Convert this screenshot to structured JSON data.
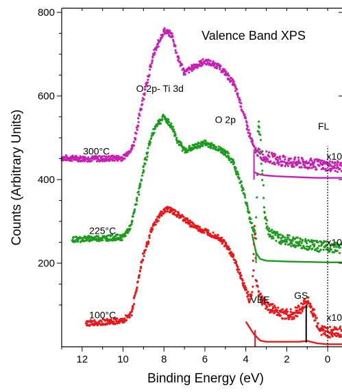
{
  "chart_data": {
    "type": "scatter",
    "title": "Valence Band XPS",
    "xlabel": "Binding Energy (eV)",
    "ylabel": "Counts (Arbitrary Units)",
    "xlim": [
      13.0,
      -0.7
    ],
    "ylim": [
      0,
      810
    ],
    "x_ticks": [
      12,
      10,
      8,
      6,
      4,
      2,
      0
    ],
    "x_tick_labels": [
      "12",
      "10",
      "8",
      "6",
      "4",
      "2",
      "0"
    ],
    "y_ticks": [
      200,
      400,
      600,
      800
    ],
    "y_tick_labels": [
      "200",
      "400",
      "600",
      "800"
    ],
    "grid": false,
    "series": [
      {
        "name": "300°C",
        "color": "#c81eb4",
        "points": [
          [
            13,
            452
          ],
          [
            12,
            450
          ],
          [
            11,
            450
          ],
          [
            10,
            452
          ],
          [
            9.5,
            480
          ],
          [
            9,
            600
          ],
          [
            8.5,
            700
          ],
          [
            8,
            757
          ],
          [
            7.6,
            745
          ],
          [
            7.3,
            690
          ],
          [
            7.0,
            655
          ],
          [
            6.6,
            668
          ],
          [
            6,
            683
          ],
          [
            5.4,
            673
          ],
          [
            5,
            655
          ],
          [
            4.6,
            630
          ],
          [
            4.3,
            590
          ],
          [
            4.0,
            540
          ],
          [
            3.8,
            505
          ],
          [
            3.6,
            475
          ],
          [
            3.4,
            462
          ],
          [
            3.0,
            455
          ],
          [
            2.5,
            448
          ],
          [
            2,
            443
          ],
          [
            1.5,
            440
          ],
          [
            1.0,
            438
          ],
          [
            0.5,
            436
          ],
          [
            0,
            433
          ],
          [
            -0.7,
            430
          ]
        ],
        "scaled_points": [
          [
            3.6,
            418
          ],
          [
            3.3,
            412
          ],
          [
            3.0,
            410
          ],
          [
            2.5,
            408
          ],
          [
            2,
            407
          ],
          [
            1.5,
            406
          ],
          [
            1,
            405
          ],
          [
            0.5,
            404
          ],
          [
            0,
            404
          ],
          [
            -0.7,
            404
          ]
        ]
      },
      {
        "name": "225°C",
        "color": "#1c9b1c",
        "points": [
          [
            12.5,
            256
          ],
          [
            12,
            258
          ],
          [
            11,
            260
          ],
          [
            10,
            262
          ],
          [
            9.6,
            290
          ],
          [
            9.2,
            380
          ],
          [
            8.7,
            490
          ],
          [
            8.4,
            530
          ],
          [
            8,
            550
          ],
          [
            7.6,
            525
          ],
          [
            7.3,
            490
          ],
          [
            7,
            470
          ],
          [
            6.5,
            478
          ],
          [
            6,
            488
          ],
          [
            5.5,
            478
          ],
          [
            5,
            465
          ],
          [
            4.6,
            440
          ],
          [
            4.3,
            400
          ],
          [
            4,
            350
          ],
          [
            3.7,
            290
          ],
          [
            3.5,
            265
          ],
          [
            3.4,
            540
          ],
          [
            3.3,
            500
          ],
          [
            3.2,
            420
          ],
          [
            3.1,
            320
          ],
          [
            2.9,
            275
          ],
          [
            2.5,
            262
          ],
          [
            2,
            255
          ],
          [
            1.5,
            250
          ],
          [
            1,
            245
          ],
          [
            0.5,
            240
          ],
          [
            0,
            240
          ],
          [
            -0.7,
            236
          ]
        ],
        "scaled_points": [
          [
            3.7,
            270
          ],
          [
            3.5,
            225
          ],
          [
            3.3,
            210
          ],
          [
            3,
            206
          ],
          [
            2,
            204
          ],
          [
            1,
            203
          ],
          [
            0,
            202
          ],
          [
            -0.7,
            202
          ]
        ]
      },
      {
        "name": "100°C",
        "color": "#e8171a",
        "points": [
          [
            11.8,
            56
          ],
          [
            11,
            59
          ],
          [
            10,
            62
          ],
          [
            9.6,
            80
          ],
          [
            9.3,
            150
          ],
          [
            9,
            220
          ],
          [
            8.6,
            280
          ],
          [
            8.2,
            315
          ],
          [
            7.8,
            330
          ],
          [
            7.3,
            315
          ],
          [
            6.8,
            298
          ],
          [
            6.3,
            282
          ],
          [
            5.8,
            273
          ],
          [
            5.3,
            262
          ],
          [
            5,
            245
          ],
          [
            4.6,
            215
          ],
          [
            4.3,
            175
          ],
          [
            4.0,
            135
          ],
          [
            3.8,
            110
          ],
          [
            3.7,
            130
          ],
          [
            3.6,
            230
          ],
          [
            3.55,
            300
          ],
          [
            3.5,
            160
          ],
          [
            3.3,
            118
          ],
          [
            3.0,
            100
          ],
          [
            2.6,
            88
          ],
          [
            2.2,
            80
          ],
          [
            2,
            76
          ],
          [
            1.6,
            80
          ],
          [
            1.2,
            98
          ],
          [
            1.0,
            110
          ],
          [
            0.8,
            92
          ],
          [
            0.5,
            55
          ],
          [
            0.3,
            40
          ],
          [
            0,
            35
          ],
          [
            -0.7,
            35
          ]
        ],
        "scaled_points": [
          [
            4.0,
            60
          ],
          [
            3.6,
            30
          ],
          [
            3.3,
            15
          ],
          [
            3,
            12
          ],
          [
            2,
            12
          ],
          [
            1.4,
            12
          ],
          [
            1,
            14
          ],
          [
            0.5,
            8
          ],
          [
            0,
            6
          ],
          [
            -0.7,
            6
          ]
        ]
      }
    ],
    "annotations": [
      {
        "text": "O 2p- Ti 3d",
        "x": 8.2,
        "y": 610
      },
      {
        "text": "O 2p",
        "x": 5.0,
        "y": 535
      },
      {
        "text": "FL",
        "x": 0.2,
        "y": 520
      },
      {
        "text": "VBE",
        "x": 3.3,
        "y": 105
      },
      {
        "text": "GS",
        "x": 1.3,
        "y": 115
      },
      {
        "text": "x10",
        "x": -0.7,
        "y": 448
      },
      {
        "text": "x10",
        "x": -0.7,
        "y": 242
      },
      {
        "text": "x10",
        "x": -0.7,
        "y": 62
      },
      {
        "text": "300°C",
        "x": 11.3,
        "y": 460
      },
      {
        "text": "225°C",
        "x": 11.0,
        "y": 270
      },
      {
        "text": "100°C",
        "x": 11.0,
        "y": 68
      }
    ],
    "markers": [
      {
        "name": "fermi-level-line",
        "x": 0,
        "y0": 0,
        "y1": 480,
        "style": "dotted",
        "color": "#000000"
      },
      {
        "name": "vbe-marker-line",
        "x": 3.55,
        "y0": 0,
        "y1": 40,
        "style": "solid",
        "color": "#e8171a"
      },
      {
        "name": "gs-marker-line",
        "x": 1.05,
        "y0": 10,
        "y1": 100,
        "style": "solid",
        "color": "#000000"
      },
      {
        "name": "onset-marker-225",
        "x": 3.5,
        "y0": 200,
        "y1": 230,
        "style": "solid",
        "color": "#1c9b1c"
      },
      {
        "name": "onset-marker-300",
        "x": 3.6,
        "y0": 400,
        "y1": 470,
        "style": "solid",
        "color": "#c81eb4"
      }
    ]
  }
}
